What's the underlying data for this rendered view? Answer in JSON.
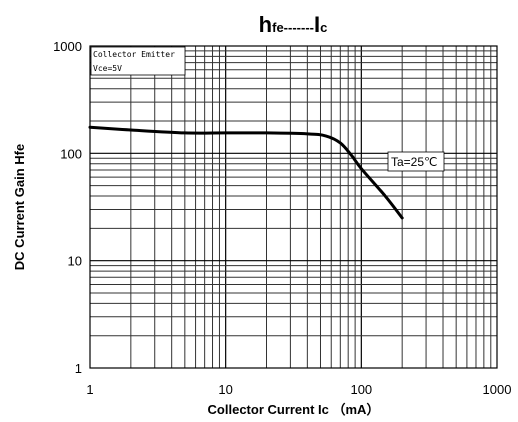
{
  "chart_data": {
    "type": "line",
    "title": {
      "main": "h",
      "main_sub": "fe",
      "dashes": "-------",
      "tail": "I",
      "tail_sub": "c"
    },
    "xlabel": "Collector Current Ic （mA）",
    "ylabel": "DC Current Gain Hfe",
    "x_scale": "log",
    "y_scale": "log",
    "xlim": [
      1,
      1000
    ],
    "ylim": [
      1,
      1000
    ],
    "x_ticks": [
      {
        "value": 1,
        "label": "1"
      },
      {
        "value": 10,
        "label": "10"
      },
      {
        "value": 100,
        "label": "100"
      },
      {
        "value": 1000,
        "label": "1000"
      }
    ],
    "y_ticks": [
      {
        "value": 1,
        "label": "1"
      },
      {
        "value": 10,
        "label": "10"
      },
      {
        "value": 100,
        "label": "100"
      },
      {
        "value": 1000,
        "label": "1000"
      }
    ],
    "grid": true,
    "series": [
      {
        "x": [
          1,
          2,
          5,
          10,
          20,
          40,
          55,
          70,
          85,
          100,
          150,
          200
        ],
        "y": [
          175,
          165,
          155,
          155,
          155,
          152,
          145,
          125,
          95,
          72,
          40,
          25
        ]
      }
    ],
    "annotations": {
      "condition_line1": "Collector Emitter",
      "condition_line2": "Vce=5V",
      "temperature": "Ta=25℃"
    }
  }
}
